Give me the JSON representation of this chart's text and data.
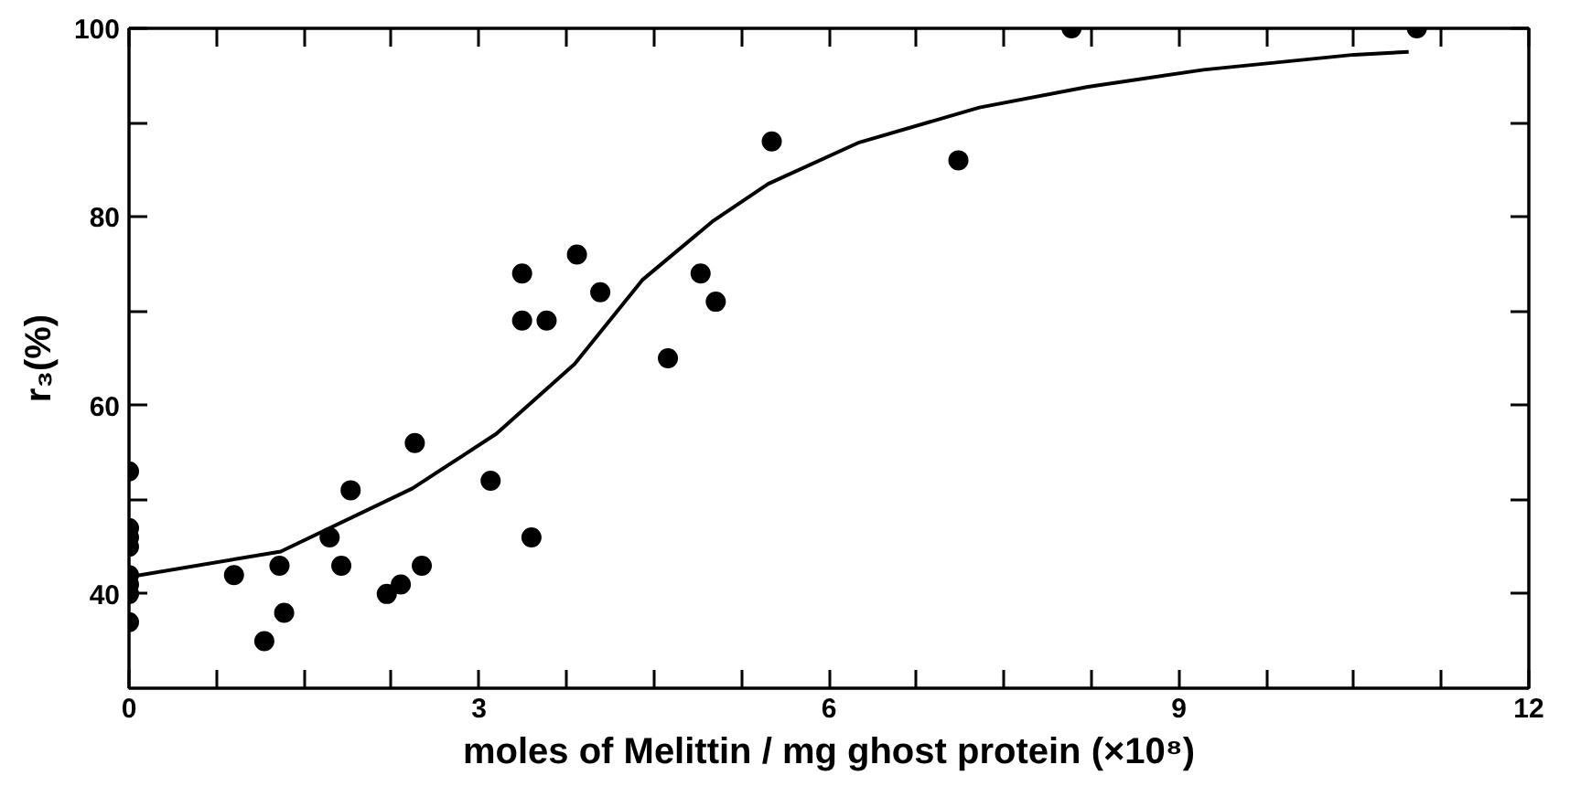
{
  "chart_data": {
    "type": "scatter",
    "xlabel": "moles of Melittin / mg ghost protein (×10⁸)",
    "ylabel": "r₃(%)",
    "xlim": [
      0,
      12
    ],
    "ylim": [
      30,
      100
    ],
    "xticks": [
      0,
      {
        "value": 0.75,
        "label": null
      },
      {
        "value": 1.5,
        "label": null
      },
      {
        "value": 2.25,
        "label": null
      },
      3,
      {
        "value": 3.75,
        "label": null
      },
      {
        "value": 4.5,
        "label": null
      },
      {
        "value": 5.25,
        "label": null
      },
      6,
      {
        "value": 6.75,
        "label": null
      },
      {
        "value": 7.5,
        "label": null
      },
      {
        "value": 8.25,
        "label": null
      },
      9,
      {
        "value": 9.75,
        "label": null
      },
      {
        "value": 10.5,
        "label": null
      },
      {
        "value": 11.25,
        "label": null
      },
      12
    ],
    "yticks": [
      40,
      {
        "value": 50,
        "label": null
      },
      60,
      {
        "value": 70,
        "label": null
      },
      80,
      {
        "value": 90,
        "label": null
      },
      100
    ],
    "grid": false,
    "marker": "circle",
    "series": [
      {
        "color": "#000000",
        "x": [
          0,
          0,
          0,
          0,
          0,
          0,
          0,
          0,
          0.9,
          1.29,
          1.33,
          1.16,
          1.72,
          1.82,
          1.9,
          2.21,
          2.33,
          2.45,
          2.51,
          3.1,
          3.37,
          3.37,
          3.58,
          3.45,
          3.84,
          4.04,
          4.62,
          4.9,
          5.03,
          5.51,
          7.11,
          8.08,
          11.04
        ],
        "values": [
          53,
          47,
          46,
          45,
          42,
          41,
          40,
          37,
          42,
          43,
          38,
          35,
          46,
          43,
          51,
          40,
          41,
          56,
          43,
          52,
          74,
          69,
          69,
          46,
          76,
          72,
          65,
          74,
          71,
          88,
          86,
          100,
          100
        ]
      },
      {
        "type": "line",
        "color": "#000000",
        "marker": "none",
        "line_style": "solid",
        "x": [
          0,
          1.3,
          2.43,
          3.15,
          3.82,
          4.4,
          5.0,
          5.48,
          6.26,
          7.29,
          8.22,
          9.21,
          10.5,
          10.97
        ],
        "values": [
          41.8,
          44.5,
          51.2,
          57,
          64.4,
          73.3,
          79.5,
          83.5,
          87.9,
          91.6,
          93.8,
          95.6,
          97.2,
          97.5
        ]
      }
    ]
  }
}
